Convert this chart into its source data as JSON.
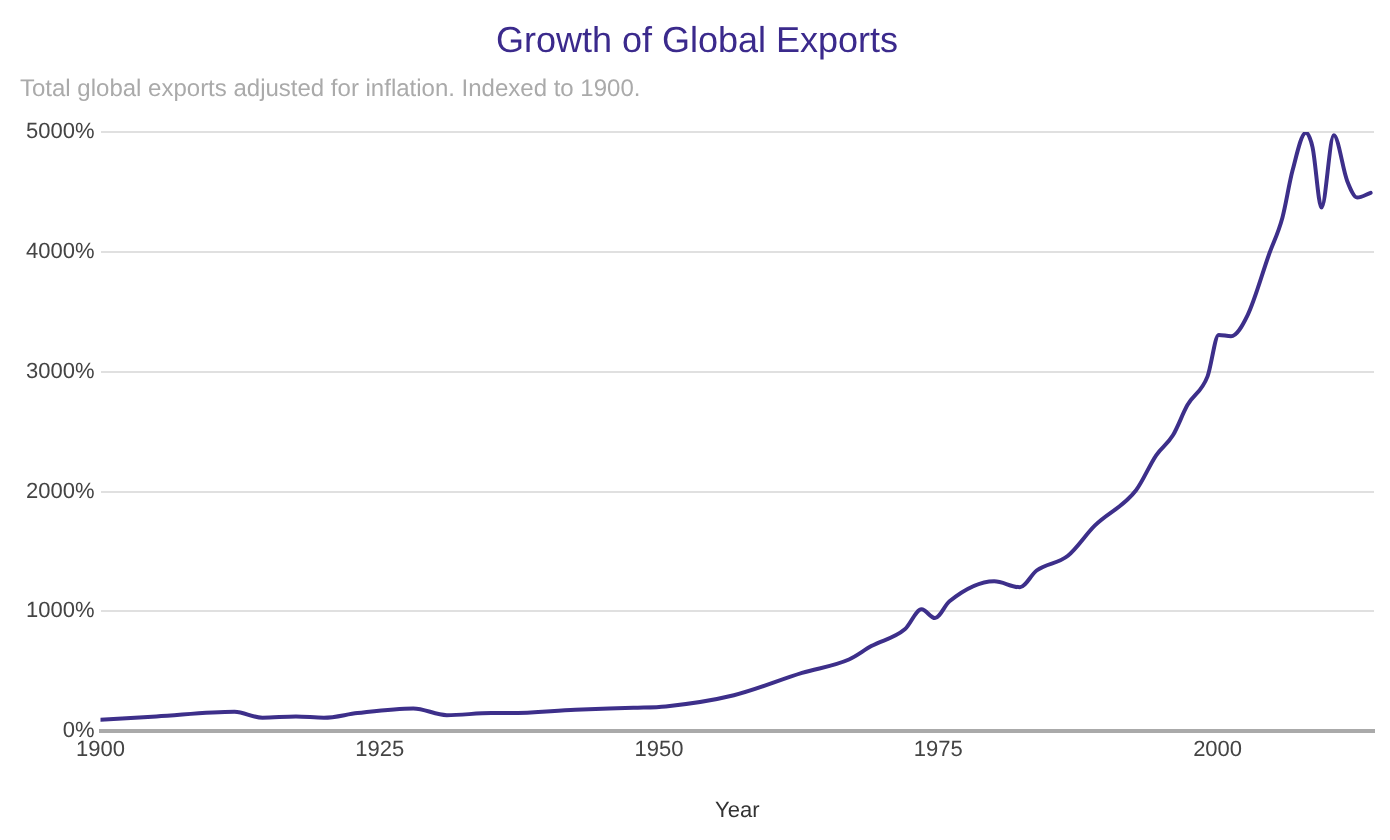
{
  "chart_data": {
    "type": "line",
    "title": "Growth of Global Exports",
    "subtitle": "Total global exports adjusted for inflation. Indexed to 1900.",
    "xlabel": "Year",
    "x": [
      1900,
      1905,
      1912,
      1914.5,
      1917.5,
      1920,
      1923,
      1928,
      1931,
      1935,
      1936.7,
      1942.5,
      1947.7,
      1950.6,
      1956.7,
      1962.8,
      1967,
      1969,
      1972,
      1973.5,
      1974.7,
      1976,
      1980,
      1982.3,
      1983.8,
      1986.6,
      1989,
      1992.7,
      1994.5,
      1996,
      1997.3,
      1999.1,
      2000.1,
      2001.2,
      2002.7,
      2004.6,
      2005.8,
      2006.7,
      2007.9,
      2008.5,
      2009.3,
      2010.4,
      2011.6,
      2012.5,
      2013.7
    ],
    "series": [
      {
        "color": "#3d2f8a",
        "values": [
          95,
          123,
          162,
          112,
          123,
          112,
          151,
          190,
          134,
          151,
          151,
          179,
          196,
          207,
          300,
          486,
          598,
          710,
          850,
          1017,
          944,
          1084,
          1251,
          1201,
          1341,
          1464,
          1715,
          2011,
          2302,
          2469,
          2721,
          2961,
          3307,
          3296,
          3475,
          3978,
          4285,
          4676,
          4994,
          4872,
          4369,
          4972,
          4592,
          4453,
          4492
        ]
      }
    ],
    "xlim": [
      1900,
      2014
    ],
    "xticks": [
      1900,
      1925,
      1950,
      1975,
      2000
    ],
    "ylim": [
      0,
      5000
    ],
    "yticks": [
      {
        "value": 0,
        "label": "0%"
      },
      {
        "value": 1000,
        "label": "1000%"
      },
      {
        "value": 2000,
        "label": "2000%"
      },
      {
        "value": 3000,
        "label": "3000%"
      },
      {
        "value": 4000,
        "label": "4000%"
      },
      {
        "value": 5000,
        "label": "5000%"
      }
    ],
    "grid": "y",
    "legend": false,
    "marker": "none",
    "line_style": "solid"
  }
}
